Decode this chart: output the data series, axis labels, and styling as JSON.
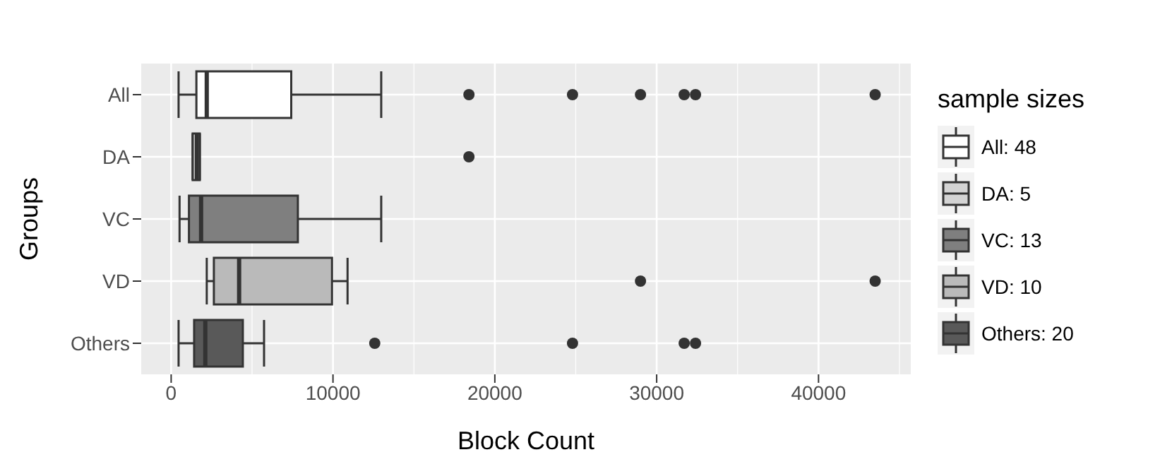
{
  "chart_data": {
    "type": "box",
    "orientation": "horizontal",
    "xlabel": "Block Count",
    "ylabel": "Groups",
    "legend_title": "sample sizes",
    "legend": "right",
    "grid": true,
    "categories": [
      "All",
      "DA",
      "VC",
      "VD",
      "Others"
    ],
    "xlim": [
      -1850,
      45700
    ],
    "xticks": [
      0,
      10000,
      20000,
      30000,
      40000
    ],
    "series": [
      {
        "name": "All: 48",
        "color": "#ffffff",
        "boxes": [
          {
            "low": 460,
            "q1": 1560,
            "median": 2200,
            "q3": 7420,
            "high": 12980,
            "outliers": [
              18400,
              24800,
              29000,
              31700,
              32400,
              43500
            ]
          },
          null,
          null,
          null,
          null
        ]
      },
      {
        "name": "DA: 5",
        "color": "#d4d4d4",
        "boxes": [
          null,
          {
            "low": 1330,
            "q1": 1330,
            "median": 1590,
            "q3": 1770,
            "high": 1770,
            "outliers": [
              18400
            ]
          },
          null,
          null,
          null
        ]
      },
      {
        "name": "VC: 13",
        "color": "#7f7f7f",
        "boxes": [
          null,
          null,
          {
            "low": 520,
            "q1": 1100,
            "median": 1850,
            "q3": 7830,
            "high": 12980
          },
          null,
          null
        ]
      },
      {
        "name": "VD: 10",
        "color": "#bababa",
        "boxes": [
          null,
          null,
          null,
          {
            "low": 2200,
            "q1": 2640,
            "median": 4200,
            "q3": 9940,
            "high": 10900,
            "outliers": [
              29000,
              43500
            ]
          },
          null
        ]
      },
      {
        "name": "Others: 20",
        "color": "#595959",
        "boxes": [
          null,
          null,
          null,
          null,
          {
            "low": 460,
            "q1": 1420,
            "median": 2110,
            "q3": 4430,
            "high": 5740,
            "outliers": [
              12580,
              24800,
              31700,
              32400
            ]
          }
        ]
      }
    ]
  }
}
